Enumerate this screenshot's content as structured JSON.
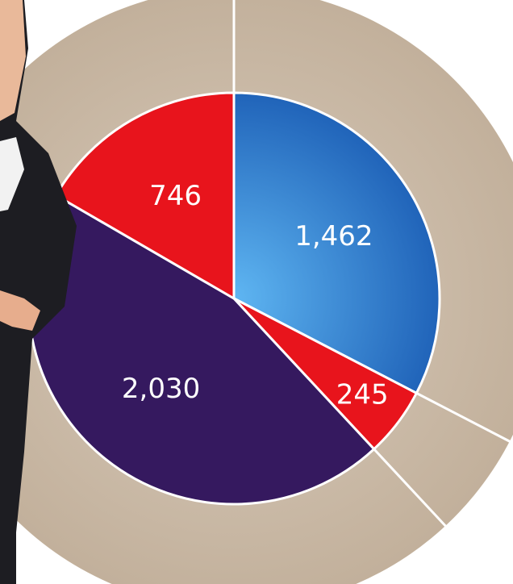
{
  "chart_data": {
    "type": "pie",
    "values": [
      1462,
      245,
      2030,
      746
    ],
    "value_labels": [
      "1,462",
      "245",
      "2,030",
      "746"
    ],
    "colors": [
      "#2f86d8",
      "#e8141c",
      "#35195f",
      "#e8141c"
    ]
  }
}
